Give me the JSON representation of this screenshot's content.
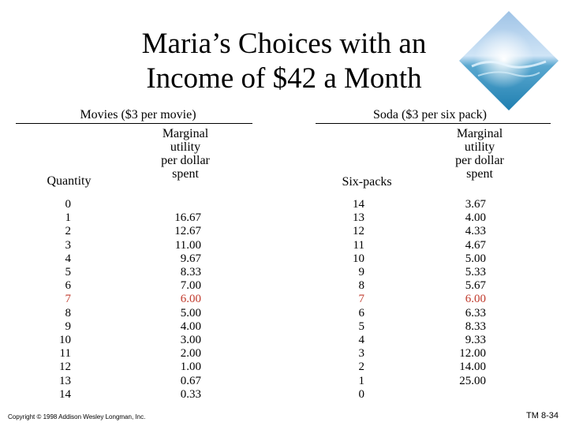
{
  "title": {
    "line1": "Maria’s Choices with an",
    "line2": "Income of $42 a Month"
  },
  "logo_icon": "ocean-wave-diamond-icon",
  "highlight_color": "#c0392b",
  "movies": {
    "header": "Movies ($3 per movie)",
    "quantity_label": "Quantity",
    "mu_label": [
      "Marginal",
      "utility",
      "per dollar",
      "spent"
    ],
    "quantity": [
      "0",
      "1",
      "2",
      "3",
      "4",
      "5",
      "6",
      "7",
      "8",
      "9",
      "10",
      "11",
      "12",
      "13",
      "14"
    ],
    "mu": [
      "",
      "16.67",
      "12.67",
      "11.00",
      "9.67",
      "8.33",
      "7.00",
      "6.00",
      "5.00",
      "4.00",
      "3.00",
      "2.00",
      "1.00",
      "0.67",
      "0.33"
    ]
  },
  "soda": {
    "header": "Soda ($3 per six pack)",
    "quantity_label": "Six-packs",
    "mu_label": [
      "Marginal",
      "utility",
      "per dollar",
      "spent"
    ],
    "quantity": [
      "14",
      "13",
      "12",
      "11",
      "10",
      "9",
      "8",
      "7",
      "6",
      "5",
      "4",
      "3",
      "2",
      "1",
      "0"
    ],
    "mu": [
      "3.67",
      "4.00",
      "4.33",
      "4.67",
      "5.00",
      "5.33",
      "5.67",
      "6.00",
      "6.33",
      "8.33",
      "9.33",
      "12.00",
      "14.00",
      "25.00",
      ""
    ]
  },
  "highlight_row": 7,
  "footer": {
    "copyright": "Copyright © 1998 Addison Wesley Longman, Inc.",
    "page_id": "TM 8-34"
  }
}
